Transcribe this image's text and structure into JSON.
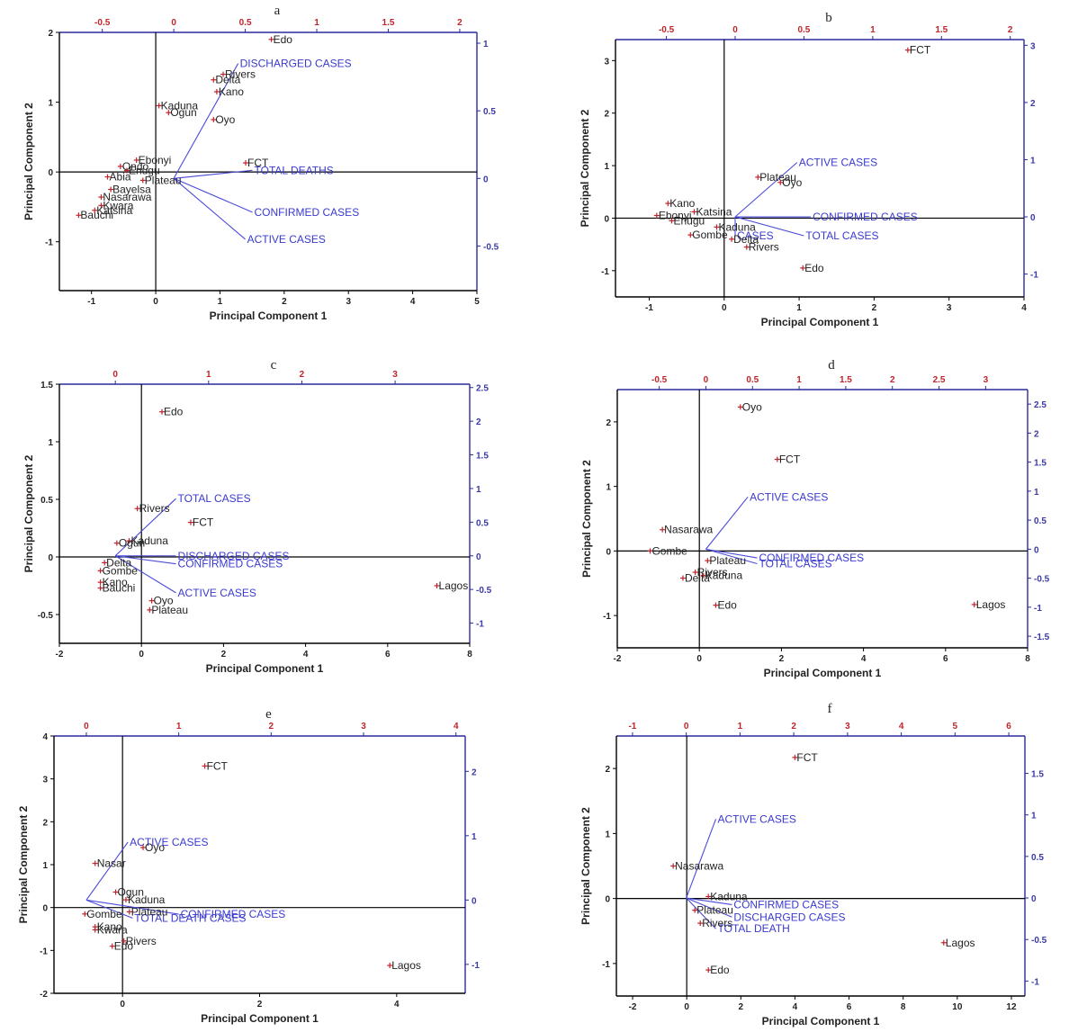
{
  "colors": {
    "frame_left_bottom": "#000000",
    "frame_top_right": "#2a2a9a",
    "tick_top": "#c0242a",
    "tick_right": "#3a3aa6",
    "vector": "#4a4ad8",
    "point_marker": "#c0242a",
    "point_text": "#222222"
  },
  "chart_data": [
    {
      "type": "scatter",
      "panel": "a",
      "xlabel": "Principal Component 1",
      "ylabel": "Principal Component 2",
      "xlim": [
        -1.5,
        5
      ],
      "ylim": [
        -1.7,
        2
      ],
      "xticks": [
        -1,
        0,
        1,
        2,
        3,
        4,
        5
      ],
      "yticks": [
        -1,
        0,
        1,
        2
      ],
      "x2lim": [
        -0.8,
        2.12
      ],
      "y2lim": [
        -0.83,
        1.08
      ],
      "x2ticks": [
        -0.5,
        0.0,
        0.5,
        1.0,
        1.5,
        2.0
      ],
      "y2ticks": [
        -0.5,
        0.0,
        0.5,
        1.0
      ],
      "points": [
        {
          "label": "Edo",
          "x": 1.8,
          "y": 1.9
        },
        {
          "label": "Rivers",
          "x": 1.05,
          "y": 1.4
        },
        {
          "label": "Delta",
          "x": 0.9,
          "y": 1.32
        },
        {
          "label": "Kano",
          "x": 0.95,
          "y": 1.15
        },
        {
          "label": "Kaduna",
          "x": 0.05,
          "y": 0.95
        },
        {
          "label": "Ogun",
          "x": 0.2,
          "y": 0.85
        },
        {
          "label": "Oyo",
          "x": 0.9,
          "y": 0.75
        },
        {
          "label": "Ebonyi",
          "x": -0.3,
          "y": 0.17
        },
        {
          "label": "FCT",
          "x": 1.4,
          "y": 0.13
        },
        {
          "label": "Ondo",
          "x": -0.55,
          "y": 0.08
        },
        {
          "label": "Enugu",
          "x": -0.45,
          "y": 0.02
        },
        {
          "label": "Abia",
          "x": -0.75,
          "y": -0.07
        },
        {
          "label": "Plateau",
          "x": -0.2,
          "y": -0.12
        },
        {
          "label": "Bayelsa",
          "x": -0.7,
          "y": -0.25
        },
        {
          "label": "Nasarawa",
          "x": -0.85,
          "y": -0.36
        },
        {
          "label": "Kwara",
          "x": -0.85,
          "y": -0.48
        },
        {
          "label": "Katsina",
          "x": -0.95,
          "y": -0.55
        },
        {
          "label": "Bauchi",
          "x": -1.2,
          "y": -0.62
        }
      ],
      "vectors": [
        {
          "label": "DISCHARGED CASES",
          "x": 0.45,
          "y": 0.85
        },
        {
          "label": "TOTAL DEATHS",
          "x": 0.55,
          "y": 0.06
        },
        {
          "label": "CONFIRMED CASES",
          "x": 0.55,
          "y": -0.25
        },
        {
          "label": "ACTIVE CASES",
          "x": 0.5,
          "y": -0.45
        }
      ]
    },
    {
      "type": "scatter",
      "panel": "b",
      "xlabel": "Principal Component 1",
      "ylabel": "Principal Component 2",
      "xlim": [
        -1.45,
        4
      ],
      "ylim": [
        -1.5,
        3.4
      ],
      "xticks": [
        -1,
        0,
        1,
        2,
        3,
        4
      ],
      "yticks": [
        -1,
        0,
        1,
        2,
        3
      ],
      "x2lim": [
        -0.87,
        2.1
      ],
      "y2lim": [
        -1.4,
        3.1
      ],
      "x2ticks": [
        -0.5,
        0.0,
        0.5,
        1.0,
        1.5,
        2.0
      ],
      "y2ticks": [
        -1,
        0,
        1,
        2,
        3
      ],
      "points": [
        {
          "label": "FCT",
          "x": 2.45,
          "y": 3.2
        },
        {
          "label": "Plateau",
          "x": 0.45,
          "y": 0.78
        },
        {
          "label": "Oyo",
          "x": 0.75,
          "y": 0.68
        },
        {
          "label": "Kano",
          "x": -0.75,
          "y": 0.28
        },
        {
          "label": "Katsina",
          "x": -0.4,
          "y": 0.12
        },
        {
          "label": "Ebonyi",
          "x": -0.9,
          "y": 0.05
        },
        {
          "label": "Enugu",
          "x": -0.7,
          "y": -0.05
        },
        {
          "label": "Kaduna",
          "x": -0.1,
          "y": -0.17
        },
        {
          "label": "Gombe",
          "x": -0.45,
          "y": -0.32
        },
        {
          "label": "Delta",
          "x": 0.1,
          "y": -0.4
        },
        {
          "label": "Rivers",
          "x": 0.3,
          "y": -0.55
        },
        {
          "label": "Edo",
          "x": 1.05,
          "y": -0.95
        }
      ],
      "vectors": [
        {
          "label": "ACTIVE CASES",
          "x": 0.45,
          "y": 0.95
        },
        {
          "label": "CONFIRMED CASES",
          "x": 0.55,
          "y": 0.0
        },
        {
          "label": "TOTAL CASES",
          "x": 0.5,
          "y": -0.33
        },
        {
          "label": "CASES",
          "x": 0.0,
          "y": -0.33
        }
      ]
    },
    {
      "type": "scatter",
      "panel": "c",
      "xlabel": "Principal Component 1",
      "ylabel": "Principal Component 2",
      "xlim": [
        -2,
        8
      ],
      "ylim": [
        -0.75,
        1.5
      ],
      "xticks": [
        -2,
        0,
        2,
        4,
        6,
        8
      ],
      "yticks": [
        -0.5,
        0.0,
        0.5,
        1.0,
        1.5
      ],
      "x2lim": [
        -0.6,
        3.8
      ],
      "y2lim": [
        -1.3,
        2.55
      ],
      "x2ticks": [
        0,
        1,
        2,
        3
      ],
      "y2ticks": [
        -1.0,
        -0.5,
        0.0,
        0.5,
        1.0,
        1.5,
        2.0,
        2.5
      ],
      "points": [
        {
          "label": "Edo",
          "x": 0.5,
          "y": 1.26
        },
        {
          "label": "Rivers",
          "x": -0.1,
          "y": 0.42
        },
        {
          "label": "FCT",
          "x": 1.2,
          "y": 0.3
        },
        {
          "label": "Kaduna",
          "x": -0.3,
          "y": 0.14
        },
        {
          "label": "Ogun",
          "x": -0.6,
          "y": 0.12
        },
        {
          "label": "Delta",
          "x": -0.9,
          "y": -0.05
        },
        {
          "label": "Gombe",
          "x": -1.0,
          "y": -0.12
        },
        {
          "label": "Kano",
          "x": -1.0,
          "y": -0.22
        },
        {
          "label": "Bauchi",
          "x": -1.0,
          "y": -0.27
        },
        {
          "label": "Oyo",
          "x": 0.25,
          "y": -0.38
        },
        {
          "label": "Plateau",
          "x": 0.2,
          "y": -0.46
        },
        {
          "label": "Lagos",
          "x": 7.2,
          "y": -0.25
        }
      ],
      "vectors": [
        {
          "label": "TOTAL CASES",
          "x": 0.65,
          "y": 0.85
        },
        {
          "label": "DISCHARGED CASES",
          "x": 0.65,
          "y": 0.0
        },
        {
          "label": "CONFIRMED CASES",
          "x": 0.65,
          "y": -0.12
        },
        {
          "label": "ACTIVE CASES",
          "x": 0.65,
          "y": -0.55
        }
      ]
    },
    {
      "type": "scatter",
      "panel": "d",
      "xlabel": "Principal Component 1",
      "ylabel": "Principal Component 2",
      "xlim": [
        -2,
        8
      ],
      "ylim": [
        -1.5,
        2.5
      ],
      "xticks": [
        -2,
        0,
        2,
        4,
        6,
        8
      ],
      "yticks": [
        -1,
        0,
        1,
        2
      ],
      "x2lim": [
        -0.95,
        3.45
      ],
      "y2lim": [
        -1.7,
        2.75
      ],
      "x2ticks": [
        -0.5,
        0.0,
        0.5,
        1.0,
        1.5,
        2.0,
        2.5,
        3.0
      ],
      "y2ticks": [
        -1.5,
        -1.0,
        -0.5,
        0.0,
        0.5,
        1.0,
        1.5,
        2.0,
        2.5
      ],
      "points": [
        {
          "label": "Oyo",
          "x": 1.0,
          "y": 2.23
        },
        {
          "label": "FCT",
          "x": 1.9,
          "y": 1.42
        },
        {
          "label": "Nasarawa",
          "x": -0.9,
          "y": 0.33
        },
        {
          "label": "Gombe",
          "x": -1.2,
          "y": 0.0
        },
        {
          "label": "Plateau",
          "x": 0.2,
          "y": -0.15
        },
        {
          "label": "Rivers",
          "x": -0.1,
          "y": -0.33
        },
        {
          "label": "Kaduna",
          "x": 0.1,
          "y": -0.38
        },
        {
          "label": "Delta",
          "x": -0.4,
          "y": -0.42
        },
        {
          "label": "Edo",
          "x": 0.4,
          "y": -0.84
        },
        {
          "label": "Lagos",
          "x": 6.7,
          "y": -0.83
        }
      ],
      "vectors": [
        {
          "label": "ACTIVE CASES",
          "x": 0.45,
          "y": 0.9
        },
        {
          "label": "CONFIRMED CASES",
          "x": 0.55,
          "y": -0.15
        },
        {
          "label": "TOTAL CASES",
          "x": 0.55,
          "y": -0.25
        }
      ]
    },
    {
      "type": "scatter",
      "panel": "e",
      "xlabel": "Principal Component 1",
      "ylabel": "Principal Component 2",
      "xlim": [
        -1,
        5
      ],
      "ylim": [
        -2,
        4
      ],
      "xticks": [
        0,
        2,
        4
      ],
      "yticks": [
        -2,
        -1,
        0,
        1,
        2,
        3,
        4
      ],
      "x2lim": [
        -0.35,
        4.1
      ],
      "y2lim": [
        -1.45,
        2.55
      ],
      "x2ticks": [
        0,
        1,
        2,
        3,
        4
      ],
      "y2ticks": [
        -1,
        0,
        1,
        2
      ],
      "points": [
        {
          "label": "FCT",
          "x": 1.2,
          "y": 3.3
        },
        {
          "label": "Oyo",
          "x": 0.3,
          "y": 1.4
        },
        {
          "label": "Nasar",
          "x": -0.4,
          "y": 1.03
        },
        {
          "label": "Ogun",
          "x": -0.1,
          "y": 0.36
        },
        {
          "label": "Kaduna",
          "x": 0.05,
          "y": 0.18
        },
        {
          "label": "Plateau",
          "x": 0.1,
          "y": -0.1
        },
        {
          "label": "Gombe",
          "x": -0.55,
          "y": -0.15
        },
        {
          "label": "Kano",
          "x": -0.4,
          "y": -0.45
        },
        {
          "label": "Kwara",
          "x": -0.4,
          "y": -0.52
        },
        {
          "label": "Rivers",
          "x": 0.02,
          "y": -0.78
        },
        {
          "label": "Edo",
          "x": -0.15,
          "y": -0.9
        },
        {
          "label": "Lagos",
          "x": 3.9,
          "y": -1.35
        }
      ],
      "vectors": [
        {
          "label": "ACTIVE CASES",
          "x": 0.45,
          "y": 0.9
        },
        {
          "label": "CONFIRMED CASES",
          "x": 1.0,
          "y": -0.22
        },
        {
          "label": "TOTAL DEATH CASES",
          "x": 0.5,
          "y": -0.28
        }
      ]
    },
    {
      "type": "scatter",
      "panel": "f",
      "xlabel": "Principal Component 1",
      "ylabel": "Principal Component 2",
      "xlim": [
        -2.6,
        12.5
      ],
      "ylim": [
        -1.5,
        2.5
      ],
      "xticks": [
        -2,
        0,
        2,
        4,
        6,
        8,
        10,
        12
      ],
      "yticks": [
        -1,
        0,
        1,
        2
      ],
      "x2lim": [
        -1.3,
        6.3
      ],
      "y2lim": [
        -1.18,
        1.95
      ],
      "x2ticks": [
        -1,
        0,
        1,
        2,
        3,
        4,
        5,
        6
      ],
      "y2ticks": [
        -1.0,
        -0.5,
        0.0,
        0.5,
        1.0,
        1.5
      ],
      "points": [
        {
          "label": "FCT",
          "x": 4.0,
          "y": 2.17
        },
        {
          "label": "Nasarawa",
          "x": -0.5,
          "y": 0.5
        },
        {
          "label": "Kaduna",
          "x": 0.8,
          "y": 0.03
        },
        {
          "label": "Plateau",
          "x": 0.3,
          "y": -0.18
        },
        {
          "label": "Rivers",
          "x": 0.5,
          "y": -0.38
        },
        {
          "label": "Edo",
          "x": 0.8,
          "y": -1.1
        },
        {
          "label": "Lagos",
          "x": 9.5,
          "y": -0.68
        }
      ],
      "vectors": [
        {
          "label": "ACTIVE CASES",
          "x": 0.55,
          "y": 0.95
        },
        {
          "label": "CONFIRMED CASES",
          "x": 0.85,
          "y": -0.08
        },
        {
          "label": "DISCHARGED CASES",
          "x": 0.85,
          "y": -0.23
        },
        {
          "label": "TOTAL DEATH",
          "x": 0.55,
          "y": -0.37
        }
      ]
    }
  ]
}
